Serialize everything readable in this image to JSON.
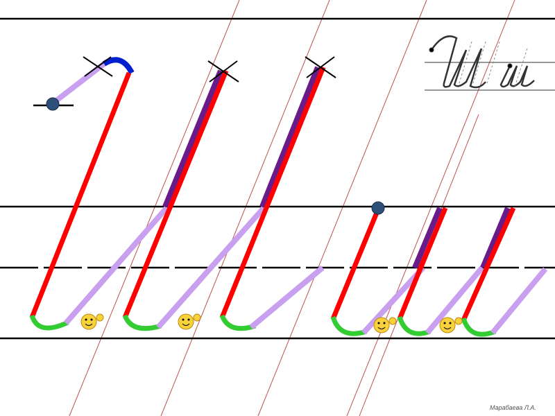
{
  "footer": {
    "author": "Марабаева Л.А."
  }
}
